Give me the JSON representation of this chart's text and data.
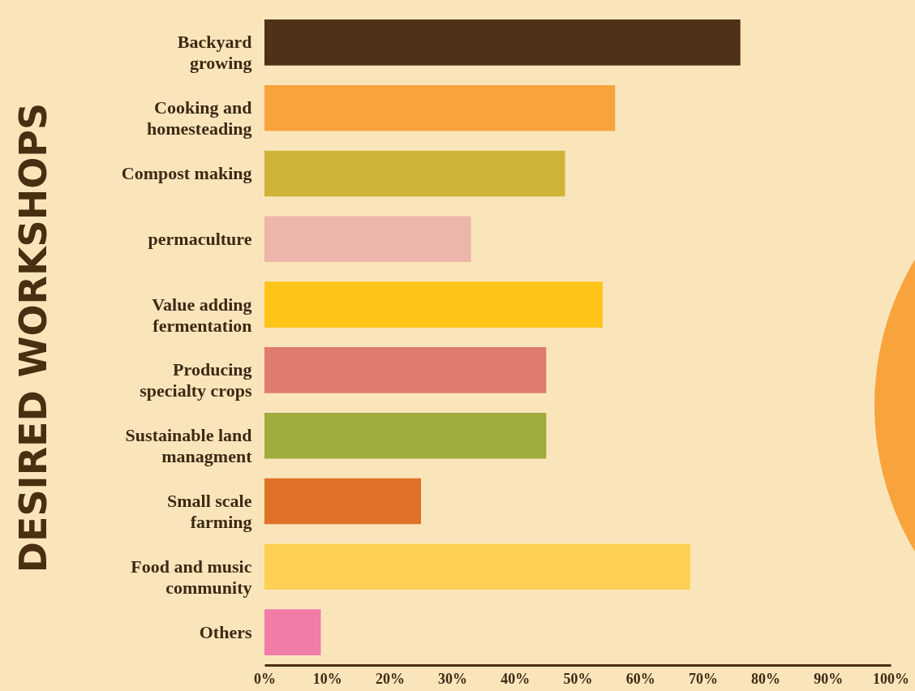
{
  "chart_data": {
    "type": "bar",
    "orientation": "horizontal",
    "ylabel": "DESIRED WORKSHOPS",
    "categories": [
      "Backyard growing",
      "Cooking and homesteading",
      "Compost making",
      "permaculture",
      "Value adding fermentation",
      "Producing specialty crops",
      "Sustainable land managment",
      "Small scale farming",
      "Food and music community",
      "Others"
    ],
    "values": [
      76,
      56,
      48,
      33,
      54,
      45,
      45,
      25,
      68,
      9
    ],
    "colors": [
      "#4e3116",
      "#f8a33c",
      "#d0b43a",
      "#edb6aa",
      "#fec418",
      "#e07b6f",
      "#a0ac3b",
      "#df7128",
      "#fed154",
      "#f17ca8"
    ],
    "xlim": [
      0,
      100
    ],
    "xticks": [
      {
        "value": 0,
        "label": "0%"
      },
      {
        "value": 10,
        "label": "10%"
      },
      {
        "value": 20,
        "label": "20%"
      },
      {
        "value": 30,
        "label": "30%"
      },
      {
        "value": 40,
        "label": "40%"
      },
      {
        "value": 50,
        "label": "50%"
      },
      {
        "value": 60,
        "label": "60%"
      },
      {
        "value": 70,
        "label": "70%"
      },
      {
        "value": 80,
        "label": "80%"
      },
      {
        "value": 90,
        "label": "90%"
      },
      {
        "value": 100,
        "label": "100%"
      }
    ],
    "grid": false
  }
}
